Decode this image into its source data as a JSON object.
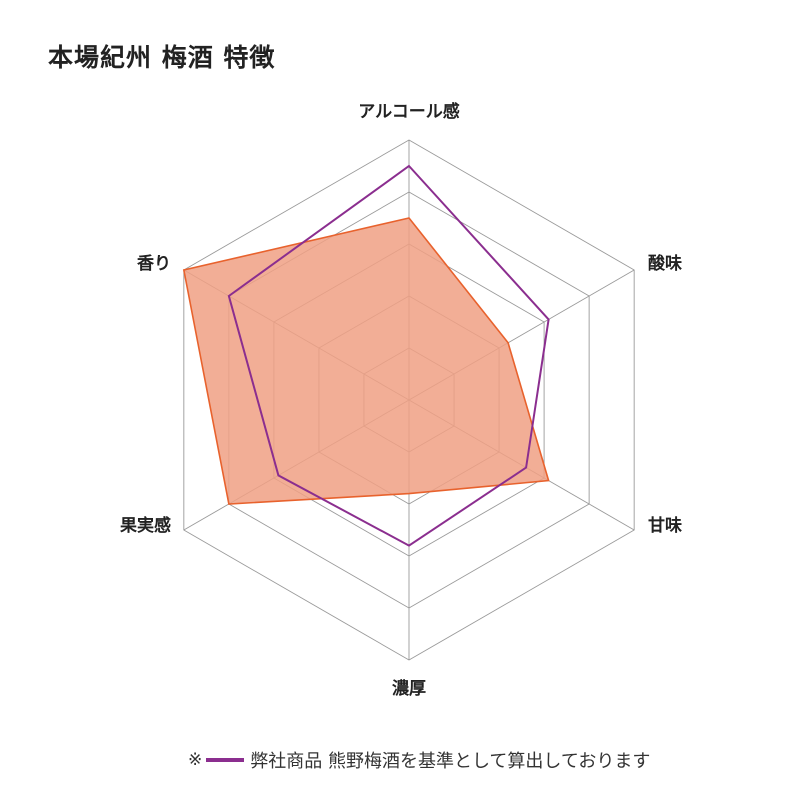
{
  "title": "本場紀州 梅酒 特徴",
  "legend": {
    "note_mark": "※",
    "note_text": "弊社商品 熊野梅酒を基準として算出しております"
  },
  "colors": {
    "product_fill": "#f0a084",
    "product_line": "#e8622d",
    "reference_line": "#8b2e8f",
    "grid": "#9a9a9a"
  },
  "chart_data": {
    "type": "radar",
    "title": "本場紀州 梅酒 特徴",
    "axes": [
      "アルコール感",
      "酸味",
      "甘味",
      "濃厚",
      "果実感",
      "香り"
    ],
    "range": [
      0,
      5
    ],
    "grid_levels": 5,
    "series": [
      {
        "values": [
          3.5,
          2.2,
          3.1,
          1.8,
          4.0,
          5.0
        ]
      },
      {
        "name": "熊野梅酒",
        "values": [
          4.5,
          3.1,
          2.6,
          2.8,
          2.9,
          4.0
        ]
      }
    ]
  }
}
